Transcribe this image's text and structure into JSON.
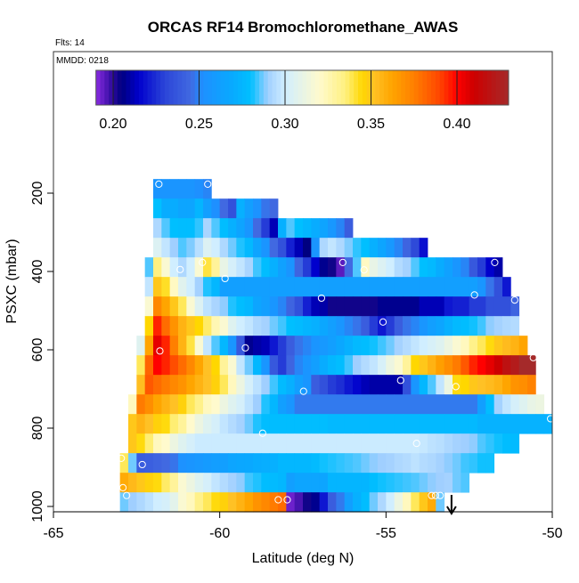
{
  "chart_data": {
    "type": "heatmap",
    "title": "ORCAS RF14 Bromochloromethane_AWAS",
    "subtitle": "Flts: 14",
    "annotation": "MMDD: 0218",
    "xlabel": "Latitude (deg N)",
    "ylabel": "PSXC (mbar)",
    "xlim": [
      -65,
      -50
    ],
    "x_ticks": [
      -65,
      -60,
      -55,
      -50
    ],
    "x_tick_labels": [
      "-65",
      "-60",
      "-55",
      "-50"
    ],
    "y_ticks": [
      200,
      400,
      600,
      800,
      1000
    ],
    "y_tick_labels": [
      "200",
      "400",
      "600",
      "800",
      "1000"
    ],
    "y_reversed": true,
    "colorbar": {
      "range": [
        0.19,
        0.43
      ],
      "ticks": [
        0.2,
        0.25,
        0.3,
        0.35,
        0.4
      ],
      "tick_labels": [
        "0.20",
        "0.25",
        "0.30",
        "0.35",
        "0.40"
      ],
      "placement": "top-inset",
      "stops": [
        [
          0.19,
          "#8a2be2"
        ],
        [
          0.2,
          "#2a0a9a"
        ],
        [
          0.205,
          "#000080"
        ],
        [
          0.215,
          "#0000cd"
        ],
        [
          0.23,
          "#2b45d8"
        ],
        [
          0.245,
          "#4169e1"
        ],
        [
          0.252,
          "#1e90ff"
        ],
        [
          0.268,
          "#0aa8ff"
        ],
        [
          0.28,
          "#00bfff"
        ],
        [
          0.29,
          "#a0cfff"
        ],
        [
          0.3,
          "#d0eeff"
        ],
        [
          0.32,
          "#fffacd"
        ],
        [
          0.335,
          "#fff080"
        ],
        [
          0.345,
          "#ffd700"
        ],
        [
          0.352,
          "#ffc125"
        ],
        [
          0.362,
          "#ffa500"
        ],
        [
          0.375,
          "#ff7f00"
        ],
        [
          0.39,
          "#ff4500"
        ],
        [
          0.4,
          "#ff0000"
        ],
        [
          0.41,
          "#cd0000"
        ],
        [
          0.43,
          "#a52a2a"
        ]
      ]
    },
    "cell_lat_width": 0.25,
    "cell_pressure_height": 50,
    "rows": [
      {
        "p": 189,
        "lat_start": -62.0,
        "values": [
          0.255,
          0.255,
          0.255,
          0.255,
          0.255,
          0.252,
          0.25
        ]
      },
      {
        "p": 239,
        "lat_start": -62.0,
        "values": [
          0.28,
          0.27,
          0.27,
          0.266,
          0.266,
          0.275,
          0.262,
          0.252,
          0.245,
          0.235,
          0.272,
          0.262,
          0.254,
          0.247,
          0.245
        ]
      },
      {
        "p": 289,
        "lat_start": -62.0,
        "values": [
          0.293,
          0.285,
          0.28,
          0.279,
          0.279,
          0.283,
          0.292,
          0.285,
          0.279,
          0.272,
          0.265,
          0.256,
          0.245,
          0.228,
          0.212,
          0.272,
          0.285,
          0.28,
          0.276,
          0.27,
          0.265,
          0.257,
          0.25,
          0.24
        ]
      },
      {
        "p": 339,
        "lat_start": -62.0,
        "values": [
          0.305,
          0.297,
          0.29,
          0.285,
          0.288,
          0.295,
          0.305,
          0.3,
          0.293,
          0.287,
          0.282,
          0.277,
          0.265,
          0.255,
          0.245,
          0.235,
          0.222,
          0.212,
          0.205,
          0.255,
          0.293,
          0.297,
          0.293,
          0.288,
          0.283,
          0.28,
          0.272,
          0.266,
          0.258,
          0.25,
          0.243,
          0.232,
          0.218
        ]
      },
      {
        "p": 389,
        "lat_start": -62.25,
        "values": [
          0.285,
          0.335,
          0.318,
          0.3,
          0.293,
          0.3,
          0.318,
          0.34,
          0.33,
          0.31,
          0.302,
          0.297,
          0.292,
          0.284,
          0.279,
          0.272,
          0.263,
          0.255,
          0.243,
          0.228,
          0.215,
          0.207,
          0.203,
          0.195,
          0.245,
          0.285,
          0.322,
          0.31,
          0.305,
          0.3,
          0.294,
          0.291,
          0.285,
          0.28,
          0.277,
          0.27,
          0.263,
          0.256,
          0.25,
          0.238,
          0.228,
          0.215,
          0.21
        ]
      },
      {
        "p": 439,
        "lat_start": -62.25,
        "values": [
          0.297,
          0.35,
          0.342,
          0.322,
          0.307,
          0.3,
          0.291,
          0.282,
          0.276,
          0.262,
          0.262,
          0.262,
          0.262,
          0.262,
          0.262,
          0.262,
          0.262,
          0.262,
          0.262,
          0.262,
          0.262,
          0.262,
          0.262,
          0.262,
          0.262,
          0.262,
          0.262,
          0.262,
          0.262,
          0.262,
          0.262,
          0.262,
          0.262,
          0.262,
          0.262,
          0.262,
          0.262,
          0.262,
          0.262,
          0.262,
          0.256,
          0.247,
          0.235,
          0.22
        ]
      },
      {
        "p": 489,
        "lat_start": -62.25,
        "values": [
          0.318,
          0.372,
          0.362,
          0.35,
          0.338,
          0.318,
          0.305,
          0.296,
          0.292,
          0.289,
          0.282,
          0.279,
          0.276,
          0.266,
          0.262,
          0.256,
          0.25,
          0.243,
          0.235,
          0.222,
          0.212,
          0.21,
          0.203,
          0.203,
          0.203,
          0.203,
          0.203,
          0.203,
          0.207,
          0.207,
          0.207,
          0.207,
          0.207,
          0.212,
          0.212,
          0.212,
          0.22,
          0.222,
          0.222,
          0.228,
          0.228,
          0.235,
          0.235,
          0.235,
          0.243
        ]
      },
      {
        "p": 539,
        "lat_start": -62.25,
        "values": [
          0.345,
          0.395,
          0.38,
          0.368,
          0.357,
          0.35,
          0.345,
          0.337,
          0.325,
          0.318,
          0.306,
          0.3,
          0.297,
          0.293,
          0.291,
          0.287,
          0.284,
          0.28,
          0.278,
          0.275,
          0.272,
          0.267,
          0.262,
          0.256,
          0.25,
          0.247,
          0.24,
          0.228,
          0.22,
          0.228,
          0.24,
          0.247,
          0.25,
          0.256,
          0.262,
          0.266,
          0.272,
          0.277,
          0.279,
          0.281,
          0.284,
          0.289,
          0.291,
          0.293,
          0.294
        ]
      },
      {
        "p": 589,
        "lat_start": -62.5,
        "values": [
          0.306,
          0.362,
          0.405,
          0.395,
          0.375,
          0.357,
          0.34,
          0.318,
          0.297,
          0.285,
          0.276,
          0.256,
          0.238,
          0.207,
          0.21,
          0.212,
          0.22,
          0.228,
          0.24,
          0.247,
          0.25,
          0.255,
          0.258,
          0.262,
          0.267,
          0.272,
          0.277,
          0.279,
          0.281,
          0.284,
          0.287,
          0.291,
          0.294,
          0.297,
          0.3,
          0.303,
          0.306,
          0.312,
          0.318,
          0.323,
          0.333,
          0.338,
          0.344,
          0.35,
          0.354,
          0.357,
          0.362
        ]
      },
      {
        "p": 639,
        "lat_start": -62.5,
        "values": [
          0.338,
          0.382,
          0.4,
          0.395,
          0.388,
          0.38,
          0.372,
          0.362,
          0.352,
          0.345,
          0.33,
          0.318,
          0.297,
          0.287,
          0.276,
          0.256,
          0.238,
          0.228,
          0.243,
          0.25,
          0.255,
          0.262,
          0.27,
          0.276,
          0.279,
          0.284,
          0.29,
          0.294,
          0.297,
          0.303,
          0.312,
          0.318,
          0.33,
          0.345,
          0.35,
          0.357,
          0.364,
          0.37,
          0.376,
          0.385,
          0.395,
          0.4,
          0.405,
          0.41,
          0.418,
          0.423,
          0.43,
          0.43
        ]
      },
      {
        "p": 689,
        "lat_start": -62.5,
        "values": [
          0.353,
          0.385,
          0.38,
          0.376,
          0.372,
          0.368,
          0.362,
          0.357,
          0.352,
          0.347,
          0.338,
          0.323,
          0.312,
          0.302,
          0.296,
          0.29,
          0.284,
          0.278,
          0.272,
          0.262,
          0.256,
          0.24,
          0.235,
          0.228,
          0.225,
          0.22,
          0.216,
          0.212,
          0.21,
          0.21,
          0.21,
          0.21,
          0.235,
          0.256,
          0.276,
          0.285,
          0.297,
          0.312,
          0.344,
          0.345,
          0.35,
          0.352,
          0.354,
          0.357,
          0.362,
          0.368,
          0.37,
          0.374
        ]
      },
      {
        "p": 739,
        "lat_start": -62.75,
        "values": [
          0.323,
          0.376,
          0.37,
          0.362,
          0.357,
          0.352,
          0.347,
          0.338,
          0.333,
          0.323,
          0.32,
          0.312,
          0.306,
          0.302,
          0.296,
          0.29,
          0.282,
          0.276,
          0.262,
          0.256,
          0.248,
          0.248,
          0.248,
          0.248,
          0.248,
          0.248,
          0.248,
          0.248,
          0.248,
          0.248,
          0.248,
          0.248,
          0.248,
          0.248,
          0.248,
          0.248,
          0.248,
          0.248,
          0.248,
          0.248,
          0.248,
          0.248,
          0.262,
          0.279,
          0.291,
          0.297,
          0.302,
          0.306,
          0.31,
          0.312
        ]
      },
      {
        "p": 789,
        "lat_start": -62.75,
        "values": [
          0.35,
          0.357,
          0.352,
          0.347,
          0.344,
          0.336,
          0.33,
          0.32,
          0.312,
          0.306,
          0.302,
          0.297,
          0.294,
          0.291,
          0.287,
          0.282,
          0.279,
          0.279,
          0.279,
          0.279,
          0.279,
          0.279,
          0.279,
          0.279,
          0.277,
          0.277,
          0.277,
          0.277,
          0.277,
          0.277,
          0.277,
          0.277,
          0.277,
          0.277,
          0.277,
          0.277,
          0.277,
          0.277,
          0.277,
          0.277,
          0.277,
          0.277,
          0.273,
          0.273,
          0.273,
          0.273,
          0.273,
          0.273,
          0.273,
          0.273,
          0.273
        ]
      },
      {
        "p": 839,
        "lat_start": -62.75,
        "values": [
          0.35,
          0.344,
          0.336,
          0.323,
          0.32,
          0.312,
          0.306,
          0.302,
          0.299,
          0.299,
          0.299,
          0.299,
          0.299,
          0.299,
          0.299,
          0.299,
          0.299,
          0.299,
          0.299,
          0.299,
          0.299,
          0.299,
          0.299,
          0.299,
          0.299,
          0.299,
          0.299,
          0.299,
          0.299,
          0.299,
          0.299,
          0.299,
          0.299,
          0.299,
          0.299,
          0.298,
          0.296,
          0.295,
          0.293,
          0.291,
          0.29,
          0.289,
          0.285,
          0.283,
          0.281,
          0.279,
          0.278
        ]
      },
      {
        "p": 889,
        "lat_start": -63.0,
        "values": [
          0.338,
          0.287,
          0.24,
          0.241,
          0.243,
          0.245,
          0.247,
          0.253,
          0.255,
          0.257,
          0.259,
          0.261,
          0.262,
          0.266,
          0.267,
          0.268,
          0.27,
          0.271,
          0.272,
          0.276,
          0.276,
          0.276,
          0.276,
          0.278,
          0.281,
          0.282,
          0.283,
          0.284,
          0.285,
          0.287,
          0.289,
          0.29,
          0.291,
          0.293,
          0.294,
          0.296,
          0.294,
          0.293,
          0.291,
          0.289,
          0.287,
          0.284,
          0.283,
          0.281,
          0.281
        ]
      },
      {
        "p": 939,
        "lat_start": -63.0,
        "values": [
          0.36,
          0.355,
          0.35,
          0.347,
          0.344,
          0.337,
          0.33,
          0.318,
          0.312,
          0.306,
          0.302,
          0.297,
          0.294,
          0.291,
          0.289,
          0.284,
          0.282,
          0.279,
          0.278,
          0.276,
          0.262,
          0.266,
          0.266,
          0.266,
          0.266,
          0.275,
          0.275,
          0.275,
          0.275,
          0.275,
          0.279,
          0.281,
          0.282,
          0.283,
          0.284,
          0.285,
          0.287,
          0.289,
          0.29,
          0.291,
          0.287,
          0.285
        ]
      },
      {
        "p": 989,
        "lat_start": -63.0,
        "values": [
          0.287,
          0.29,
          0.293,
          0.296,
          0.3,
          0.302,
          0.308,
          0.318,
          0.323,
          0.333,
          0.338,
          0.344,
          0.347,
          0.352,
          0.357,
          0.362,
          0.368,
          0.372,
          0.376,
          0.38,
          0.193,
          0.197,
          0.203,
          0.207,
          0.22,
          0.24,
          0.248,
          0.262,
          0.272,
          0.279,
          0.287,
          0.293,
          0.3,
          0.312,
          0.323,
          0.338,
          0.35,
          0.36,
          0.287
        ]
      }
    ],
    "sample_points": [
      [
        -61.83,
        177
      ],
      [
        -60.36,
        177
      ],
      [
        -60.52,
        377
      ],
      [
        -61.19,
        395
      ],
      [
        -59.84,
        418
      ],
      [
        -56.94,
        468
      ],
      [
        -56.3,
        377
      ],
      [
        -55.66,
        396
      ],
      [
        -51.73,
        377
      ],
      [
        -52.34,
        460
      ],
      [
        -51.13,
        473
      ],
      [
        -55.09,
        529
      ],
      [
        -59.23,
        595
      ],
      [
        -61.8,
        603
      ],
      [
        -50.57,
        620
      ],
      [
        -54.56,
        678
      ],
      [
        -57.48,
        706
      ],
      [
        -52.9,
        694
      ],
      [
        -50.05,
        776
      ],
      [
        -58.71,
        813
      ],
      [
        -54.08,
        839
      ],
      [
        -62.96,
        877
      ],
      [
        -62.33,
        893
      ],
      [
        -62.91,
        952
      ],
      [
        -62.8,
        972
      ],
      [
        -58.24,
        983
      ],
      [
        -57.97,
        983
      ],
      [
        -53.63,
        972
      ],
      [
        -53.51,
        972
      ],
      [
        -53.37,
        972
      ]
    ],
    "marker_arrow_lat": -53.03
  }
}
